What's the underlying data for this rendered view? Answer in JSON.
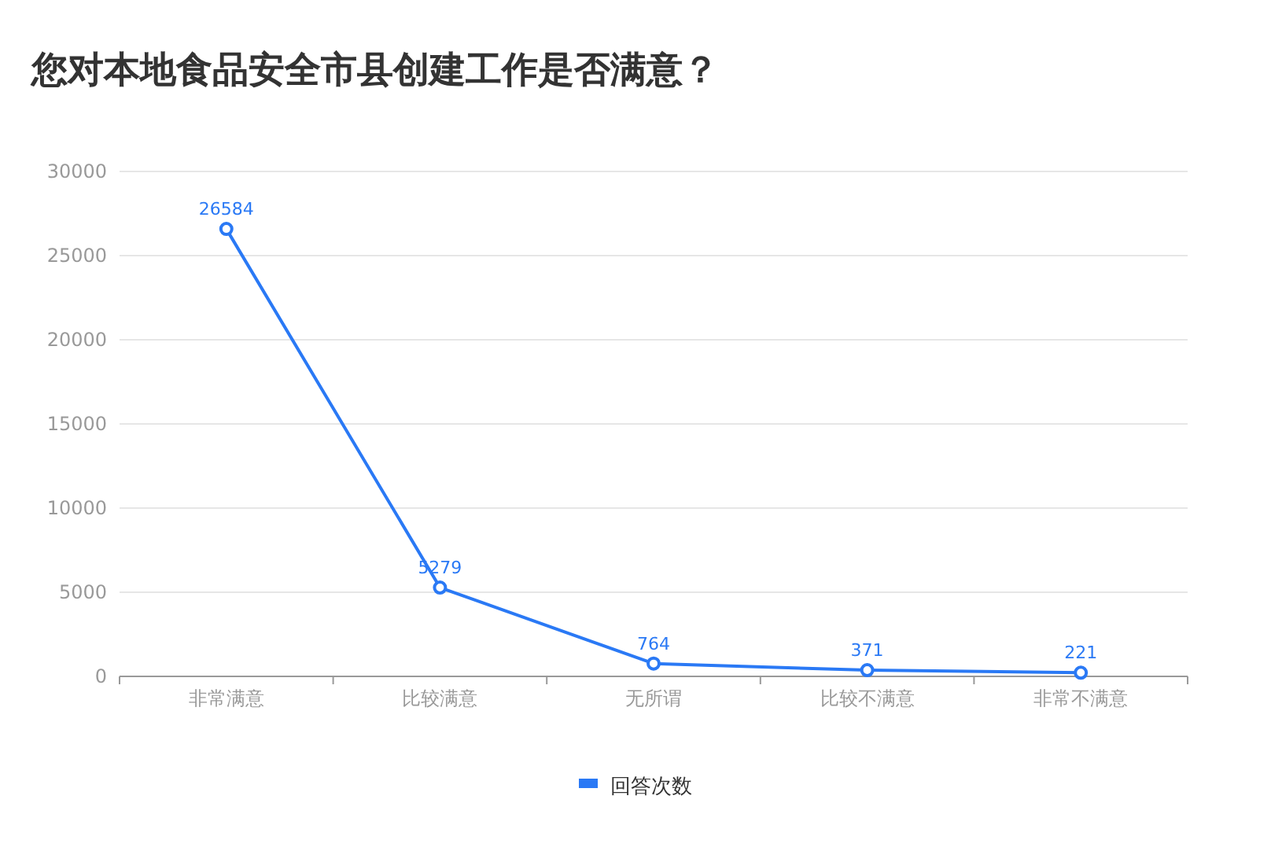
{
  "chart_data": {
    "type": "line",
    "title": "您对本地食品安全市县创建工作是否满意？",
    "categories": [
      "非常满意",
      "比较满意",
      "无所谓",
      "比较不满意",
      "非常不满意"
    ],
    "series": [
      {
        "name": "回答次数",
        "color": "#2a79f5",
        "values": [
          26584,
          5279,
          764,
          371,
          221
        ]
      }
    ],
    "ylim": [
      0,
      30000
    ],
    "yticks": [
      0,
      5000,
      10000,
      15000,
      20000,
      25000,
      30000
    ],
    "grid": "y",
    "legend": "bottom",
    "marker": "circle",
    "data_labels": true
  }
}
